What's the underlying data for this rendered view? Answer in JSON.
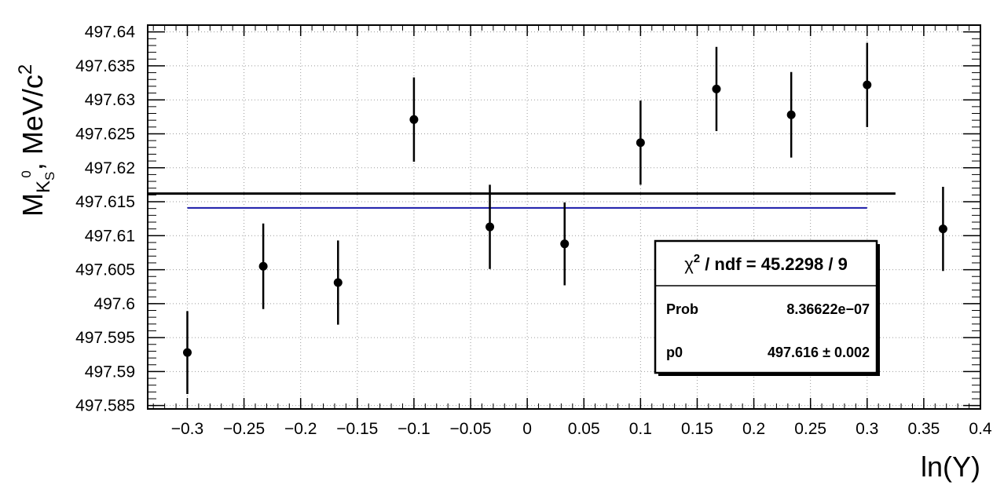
{
  "chart_data": {
    "type": "scatter",
    "xlabel": "ln(Y)",
    "ylabel": {
      "base": "M",
      "sub": "K",
      "subsub": "S",
      "sup": "0",
      "rest": ", MeV/c",
      "rest_sup": "2"
    },
    "xlim": [
      -0.335,
      0.4
    ],
    "ylim": [
      497.5845,
      497.641
    ],
    "grid": true,
    "x_ticks": [
      -0.3,
      -0.25,
      -0.2,
      -0.15,
      -0.1,
      -0.05,
      0,
      0.05,
      0.1,
      0.15,
      0.2,
      0.25,
      0.3,
      0.35,
      0.4
    ],
    "x_tick_labels": [
      "−0.3",
      "−0.25",
      "−0.2",
      "−0.15",
      "−0.1",
      "−0.05",
      "0",
      "0.05",
      "0.1",
      "0.15",
      "0.2",
      "0.25",
      "0.3",
      "0.35",
      "0.4"
    ],
    "y_ticks": [
      497.585,
      497.59,
      497.595,
      497.6,
      497.605,
      497.61,
      497.615,
      497.62,
      497.625,
      497.63,
      497.635,
      497.64
    ],
    "y_tick_labels": [
      "497.585",
      "497.59",
      "497.595",
      "497.6",
      "497.605",
      "497.61",
      "497.615",
      "497.62",
      "497.625",
      "497.63",
      "497.635",
      "497.64"
    ],
    "series": [
      {
        "x": [
          -0.3,
          -0.233,
          -0.167,
          -0.1,
          -0.033,
          0.033,
          0.1,
          0.167,
          0.233,
          0.3,
          0.367
        ],
        "y": [
          497.5928,
          497.6055,
          497.6031,
          497.6271,
          497.6113,
          497.6088,
          497.6237,
          497.6316,
          497.6278,
          497.6322,
          497.611
        ],
        "yerr": [
          0.0061,
          0.0063,
          0.0062,
          0.0062,
          0.0062,
          0.0061,
          0.0062,
          0.0062,
          0.0063,
          0.0062,
          0.0062
        ]
      }
    ],
    "fit_line": {
      "x": [
        -0.335,
        0.325
      ],
      "y": 497.6162,
      "color": "#000000"
    },
    "blue_line": {
      "x": [
        -0.3,
        0.3
      ],
      "y": 497.6141,
      "color": "#1a1aa8"
    },
    "stats_box": {
      "title_chi": "χ",
      "title_sup": "2",
      "title_rest": " / ndf = 45.2298 / 9",
      "rows": [
        {
          "label": "Prob",
          "value": "8.36622e−07"
        },
        {
          "label": "p0",
          "value": "497.616 ± 0.002"
        }
      ]
    }
  }
}
